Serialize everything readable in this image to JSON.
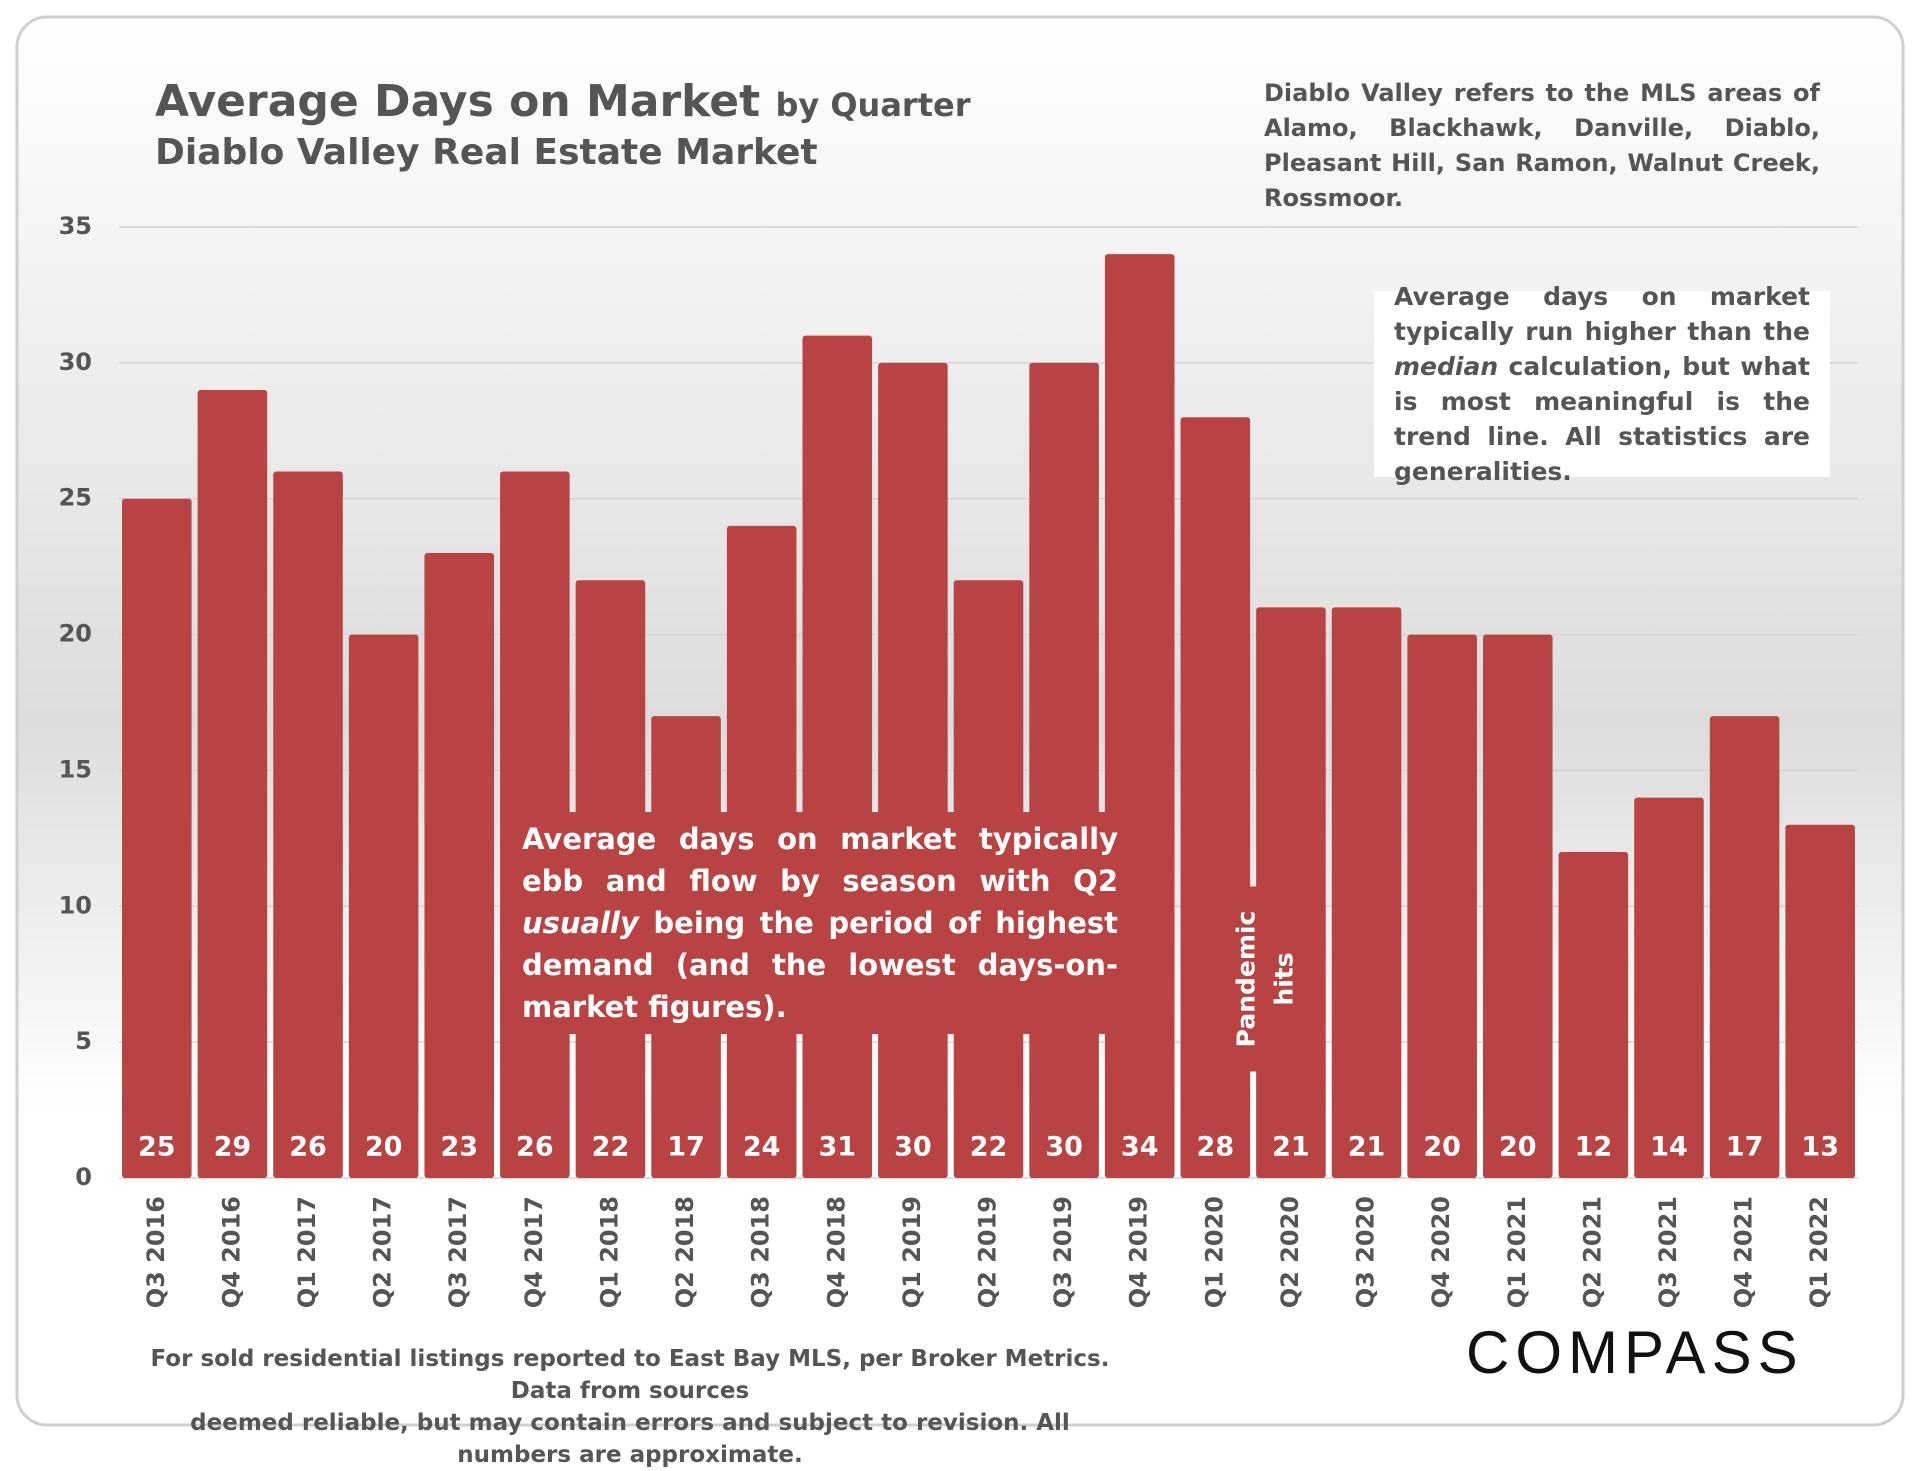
{
  "chart_data": {
    "type": "bar",
    "title": "Average Days on Market",
    "title_suffix": "by Quarter",
    "subtitle": "Diablo Valley Real Estate Market",
    "note_top": "Diablo Valley refers to the MLS areas of Alamo, Blackhawk, Danville, Diablo, Pleasant Hill, San Ramon, Walnut Creek, Rossmoor.",
    "note_right": [
      "Average days on market typically run higher than the ",
      "median",
      " calculation, but what is most meaningful is the trend line. All statistics are generalities."
    ],
    "note_center": [
      "Average days on market typically ebb and flow by season with Q2 ",
      "usually",
      " being the period of highest demand (and the lowest days-on-market figures)."
    ],
    "annotation": "Pandemic hits",
    "footer": [
      "For sold residential listings reported to East Bay MLS, per Broker Metrics. Data from sources",
      "deemed reliable, but may contain errors and subject to revision. All numbers are approximate."
    ],
    "logo": "COMPASS",
    "categories": [
      "Q3 2016",
      "Q4 2016",
      "Q1 2017",
      "Q2 2017",
      "Q3 2017",
      "Q4 2017",
      "Q1 2018",
      "Q2 2018",
      "Q3 2018",
      "Q4 2018",
      "Q1 2019",
      "Q2 2019",
      "Q3 2019",
      "Q4 2019",
      "Q1 2020",
      "Q2 2020",
      "Q3 2020",
      "Q4 2020",
      "Q1 2021",
      "Q2 2021",
      "Q3 2021",
      "Q4 2021",
      "Q1 2022"
    ],
    "values": [
      25,
      29,
      26,
      20,
      23,
      26,
      22,
      17,
      24,
      31,
      30,
      22,
      30,
      34,
      28,
      21,
      21,
      20,
      20,
      12,
      14,
      17,
      13
    ],
    "color": "#b94242",
    "ylim": [
      0,
      35
    ],
    "yticks": [
      0,
      5,
      10,
      15,
      20,
      25,
      30,
      35
    ],
    "grid": true
  }
}
